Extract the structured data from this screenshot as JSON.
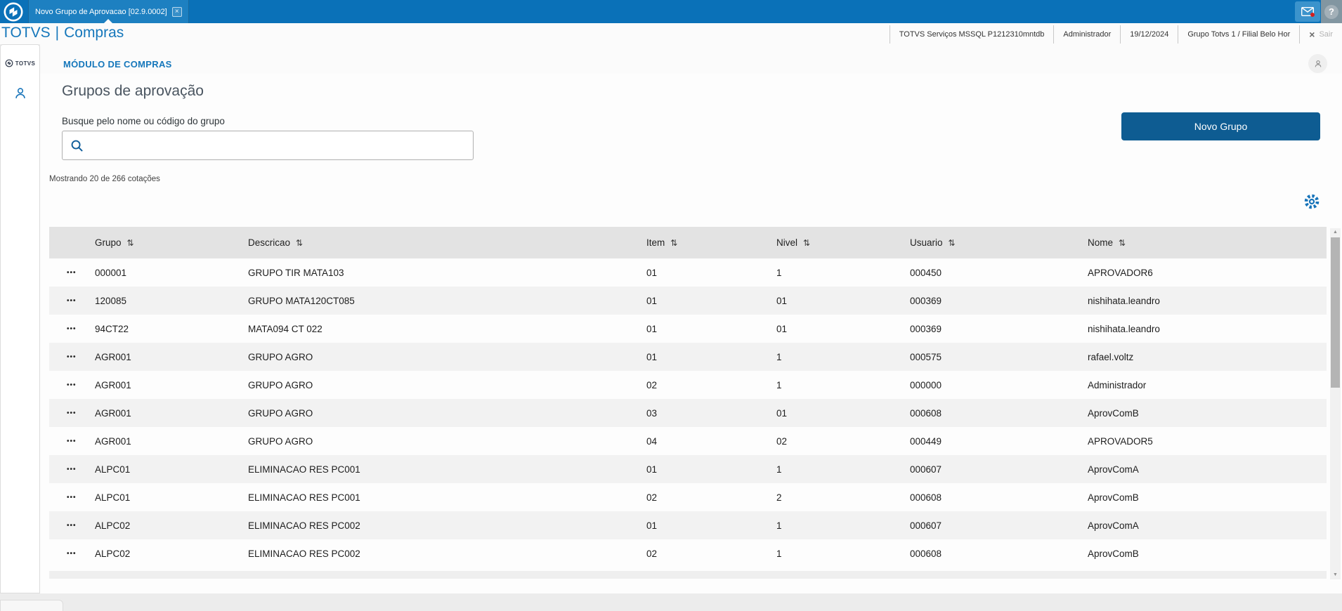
{
  "topbar": {
    "tab_title": "Novo Grupo de Aprovacao [02.9.0002]"
  },
  "header": {
    "brand": "TOTVS",
    "separator": "|",
    "module": "Compras"
  },
  "envbar": {
    "server": "TOTVS Serviços MSSQL P1212310mntdb",
    "user": "Administrador",
    "date": "19/12/2024",
    "branch": "Grupo Totvs 1 / Filial Belo Hor",
    "exit_label": "Sair"
  },
  "sidebar": {
    "logo_text": "TOTVS"
  },
  "main": {
    "module_title": "MÓDULO DE COMPRAS",
    "page_title": "Grupos de aprovação",
    "search_label": "Busque pelo nome ou código do grupo",
    "search_value": "",
    "new_group_button": "Novo Grupo",
    "results_count": "Mostrando 20 de 266 cotações"
  },
  "table": {
    "columns": [
      "Grupo",
      "Descricao",
      "Item",
      "Nivel",
      "Usuario",
      "Nome"
    ],
    "rows": [
      [
        "000001",
        "GRUPO TIR MATA103",
        "01",
        "1",
        "000450",
        "APROVADOR6"
      ],
      [
        "120085",
        "GRUPO MATA120CT085",
        "01",
        "01",
        "000369",
        "nishihata.leandro"
      ],
      [
        "94CT22",
        "MATA094 CT 022",
        "01",
        "01",
        "000369",
        "nishihata.leandro"
      ],
      [
        "AGR001",
        "GRUPO AGRO",
        "01",
        "1",
        "000575",
        "rafael.voltz"
      ],
      [
        "AGR001",
        "GRUPO AGRO",
        "02",
        "1",
        "000000",
        "Administrador"
      ],
      [
        "AGR001",
        "GRUPO AGRO",
        "03",
        "01",
        "000608",
        "AprovComB"
      ],
      [
        "AGR001",
        "GRUPO AGRO",
        "04",
        "02",
        "000449",
        "APROVADOR5"
      ],
      [
        "ALPC01",
        "ELIMINACAO RES PC001",
        "01",
        "1",
        "000607",
        "AprovComA"
      ],
      [
        "ALPC01",
        "ELIMINACAO RES PC001",
        "02",
        "2",
        "000608",
        "AprovComB"
      ],
      [
        "ALPC02",
        "ELIMINACAO RES PC002",
        "01",
        "1",
        "000607",
        "AprovComA"
      ],
      [
        "ALPC02",
        "ELIMINACAO RES PC002",
        "02",
        "1",
        "000608",
        "AprovComB"
      ]
    ]
  },
  "icons": {
    "close_glyph": "×",
    "help_glyph": "?",
    "sort_glyph": "⇅",
    "menu_dots": "•••",
    "scroll_up": "▲",
    "scroll_down": "▼",
    "exit_glyph": "×"
  },
  "colors": {
    "topbar_blue": "#0a71b8",
    "tab_blue": "#1d80c1",
    "accent_blue": "#1577bb",
    "button_blue": "#0e5c92",
    "table_header_bg": "#e3e3e3",
    "row_alt_bg": "#f2f2f2",
    "notification_red": "#d21f1f"
  }
}
